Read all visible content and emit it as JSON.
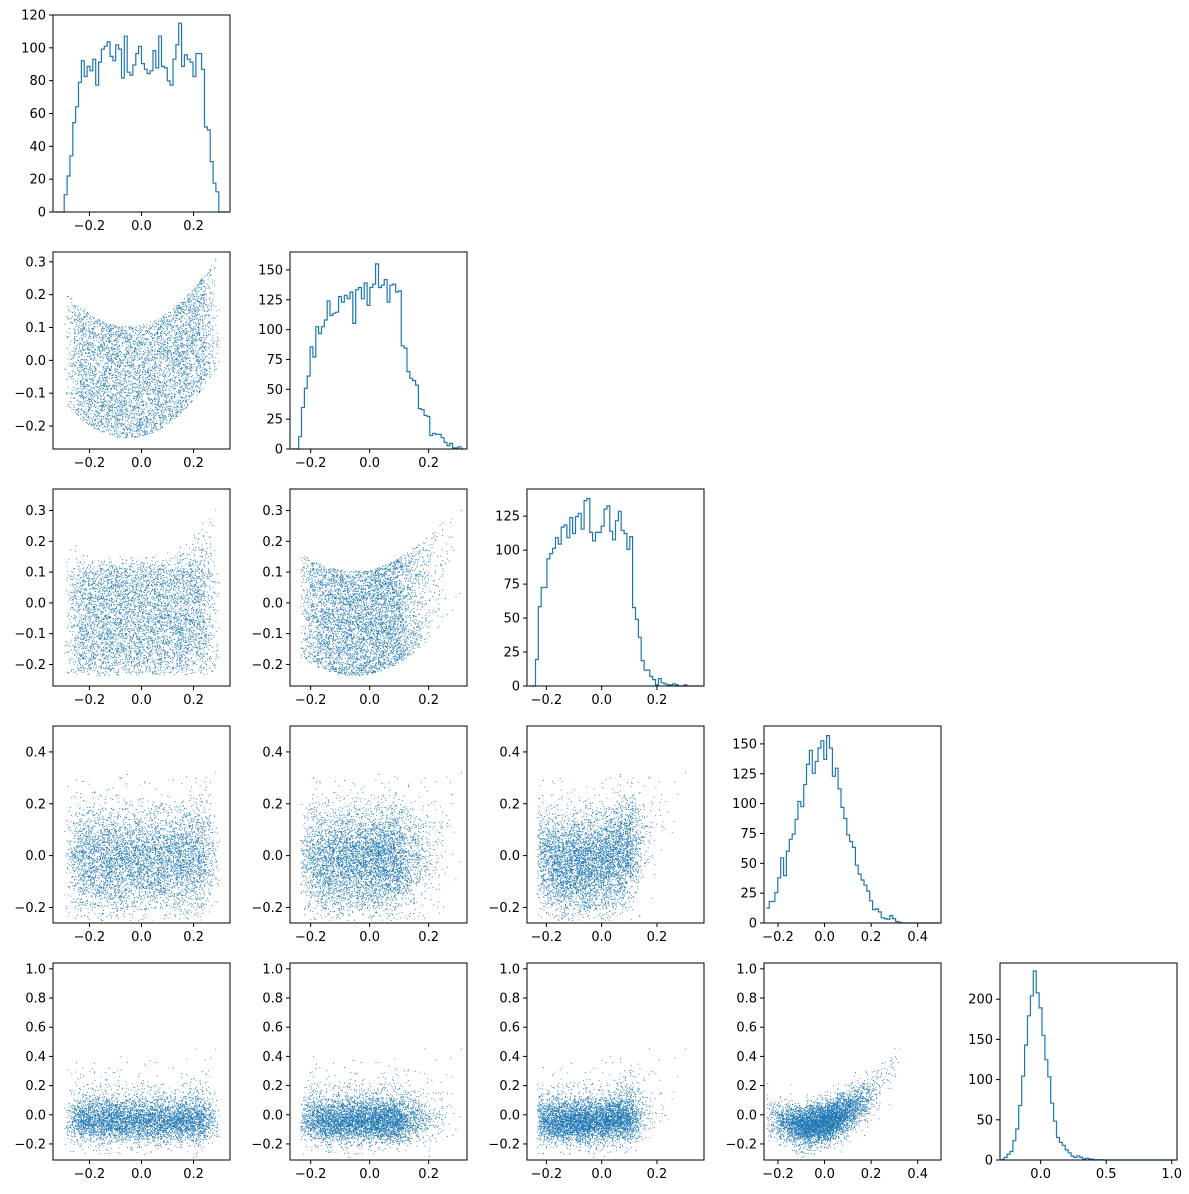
{
  "chart_data": {
    "type": "corner-plot",
    "n_params": 5,
    "hist_color": "#1f77b4",
    "point_color": "#1f77b4",
    "samples_per_scatter": 5000,
    "diagonal": [
      {
        "param": 0,
        "type": "histogram-step",
        "xlim": [
          -0.34,
          0.34
        ],
        "ylim": [
          0,
          120
        ],
        "xticks": [
          "-0.2",
          "0.0",
          "0.2"
        ],
        "xtick_values": [
          -0.2,
          0.0,
          0.2
        ],
        "yticks": [
          "0",
          "20",
          "40",
          "60",
          "80",
          "100",
          "120"
        ],
        "ytick_values": [
          0,
          20,
          40,
          60,
          80,
          100,
          120
        ],
        "peak_count": 115,
        "shape": "flat-top"
      },
      {
        "param": 1,
        "type": "histogram-step",
        "xlim": [
          -0.27,
          0.33
        ],
        "ylim": [
          0,
          165
        ],
        "xticks": [
          "-0.2",
          "0.0",
          "0.2"
        ],
        "xtick_values": [
          -0.2,
          0.0,
          0.2
        ],
        "yticks": [
          "0",
          "25",
          "50",
          "75",
          "100",
          "125",
          "150"
        ],
        "ytick_values": [
          0,
          25,
          50,
          75,
          100,
          125,
          150
        ],
        "peak_count": 155,
        "shape": "left-skewed"
      },
      {
        "param": 2,
        "type": "histogram-step",
        "xlim": [
          -0.27,
          0.37
        ],
        "ylim": [
          0,
          145
        ],
        "xticks": [
          "-0.2",
          "0.0",
          "0.2"
        ],
        "xtick_values": [
          -0.2,
          0.0,
          0.2
        ],
        "yticks": [
          "0",
          "25",
          "50",
          "75",
          "100",
          "125"
        ],
        "ytick_values": [
          0,
          25,
          50,
          75,
          100,
          125
        ],
        "peak_count": 138,
        "shape": "left-skewed"
      },
      {
        "param": 3,
        "type": "histogram-step",
        "xlim": [
          -0.26,
          0.5
        ],
        "ylim": [
          0,
          165
        ],
        "xticks": [
          "-0.2",
          "0.0",
          "0.2",
          "0.4"
        ],
        "xtick_values": [
          -0.2,
          0.0,
          0.2,
          0.4
        ],
        "yticks": [
          "0",
          "25",
          "50",
          "75",
          "100",
          "125",
          "150"
        ],
        "ytick_values": [
          0,
          25,
          50,
          75,
          100,
          125,
          150
        ],
        "peak_count": 157,
        "shape": "right-skewed"
      },
      {
        "param": 4,
        "type": "histogram-step",
        "xlim": [
          -0.31,
          1.04
        ],
        "ylim": [
          0,
          245
        ],
        "xticks": [
          "0.0",
          "0.5",
          "1.0"
        ],
        "xtick_values": [
          0.0,
          0.5,
          1.0
        ],
        "yticks": [
          "0",
          "50",
          "100",
          "150",
          "200"
        ],
        "ytick_values": [
          0,
          50,
          100,
          150,
          200
        ],
        "peak_count": 235,
        "shape": "long-right-tail"
      }
    ],
    "axis_ranges": [
      {
        "param": 0,
        "lim": [
          -0.34,
          0.34
        ],
        "ticks": [
          "-0.2",
          "0.0",
          "0.2"
        ],
        "tick_values": [
          -0.2,
          0.0,
          0.2
        ]
      },
      {
        "param": 1,
        "lim": [
          -0.27,
          0.33
        ],
        "ticks": [
          "-0.2",
          "-0.1",
          "0.0",
          "0.1",
          "0.2",
          "0.3"
        ],
        "tick_values": [
          -0.2,
          -0.1,
          0.0,
          0.1,
          0.2,
          0.3
        ],
        "xticks": [
          "-0.2",
          "0.0",
          "0.2"
        ],
        "xtick_values": [
          -0.2,
          0.0,
          0.2
        ]
      },
      {
        "param": 2,
        "lim": [
          -0.27,
          0.37
        ],
        "ticks": [
          "-0.2",
          "-0.1",
          "0.0",
          "0.1",
          "0.2",
          "0.3"
        ],
        "tick_values": [
          -0.2,
          -0.1,
          0.0,
          0.1,
          0.2,
          0.3
        ],
        "xticks": [
          "-0.2",
          "0.0",
          "0.2"
        ],
        "xtick_values": [
          -0.2,
          0.0,
          0.2
        ]
      },
      {
        "param": 3,
        "lim": [
          -0.26,
          0.5
        ],
        "ticks": [
          "-0.2",
          "0.0",
          "0.2",
          "0.4"
        ],
        "tick_values": [
          -0.2,
          0.0,
          0.2,
          0.4
        ],
        "xticks": [
          "-0.2",
          "0.0",
          "0.2",
          "0.4"
        ],
        "xtick_values": [
          -0.2,
          0.0,
          0.2,
          0.4
        ]
      },
      {
        "param": 4,
        "lim": [
          -0.31,
          1.04
        ],
        "ticks": [
          "-0.2",
          "0.0",
          "0.2",
          "0.4",
          "0.6",
          "0.8",
          "1.0"
        ],
        "tick_values": [
          -0.2,
          0.0,
          0.2,
          0.4,
          0.6,
          0.8,
          1.0
        ]
      }
    ],
    "grid": false,
    "legend": "none",
    "title": "",
    "xlabel": "",
    "ylabel": ""
  }
}
